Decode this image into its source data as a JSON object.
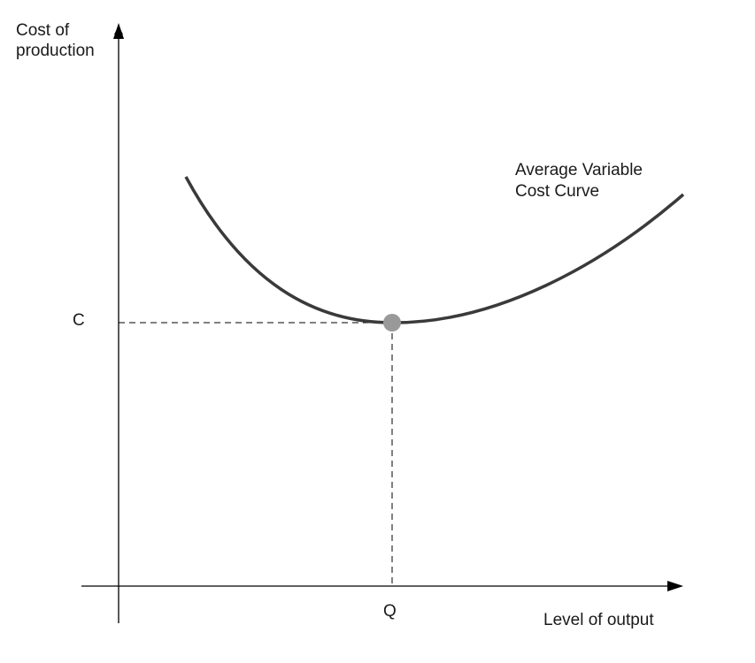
{
  "y_axis_label": [
    "Cost of",
    "production"
  ],
  "x_axis_label": "Level of output",
  "curve_label": [
    "Average Variable",
    "Cost Curve"
  ],
  "y_marker_label": "C",
  "x_marker_label": "Q"
}
